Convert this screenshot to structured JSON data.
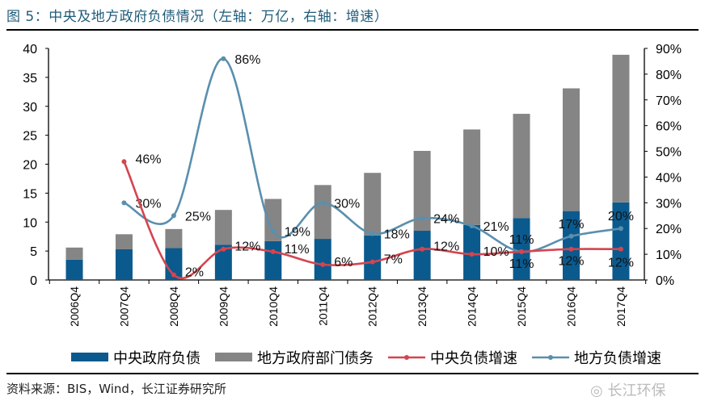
{
  "title": "图 5：中央及地方政府负债情况（左轴：万亿，右轴：增速）",
  "source": "资料来源：BIS，Wind，长江证券研究所",
  "watermark": "长江环保",
  "chart_data": {
    "type": "bar+line",
    "categories": [
      "2006Q4",
      "2007Q4",
      "2008Q4",
      "2009Q4",
      "2010Q4",
      "2011Q4",
      "2012Q4",
      "2013Q4",
      "2014Q4",
      "2015Q4",
      "2016Q4",
      "2017Q4"
    ],
    "left_axis": {
      "range": [
        0,
        40
      ],
      "ticks": [
        "0",
        "5",
        "10",
        "15",
        "20",
        "25",
        "30",
        "35",
        "40"
      ]
    },
    "right_axis": {
      "range": [
        0,
        90
      ],
      "ticks": [
        "0%",
        "10%",
        "20%",
        "30%",
        "40%",
        "50%",
        "60%",
        "70%",
        "80%",
        "90%"
      ]
    },
    "legend_position": "bottom",
    "grid": false,
    "series": [
      {
        "name": "中央政府负债",
        "kind": "stacked-bar",
        "axis": "left",
        "color": "#0b5a8e",
        "values": [
          3.5,
          5.3,
          5.5,
          6.1,
          6.7,
          7.1,
          7.7,
          8.5,
          9.5,
          10.7,
          11.9,
          13.4
        ]
      },
      {
        "name": "地方政府部门债务",
        "kind": "stacked-bar",
        "axis": "left",
        "color": "#858585",
        "values": [
          2.1,
          2.6,
          3.3,
          6.0,
          7.3,
          9.3,
          10.8,
          13.8,
          16.5,
          18.0,
          21.2,
          25.5
        ]
      },
      {
        "name": "中央负债增速",
        "kind": "line",
        "axis": "right",
        "color": "#d4454f",
        "values": [
          null,
          46,
          2,
          12,
          11,
          6,
          7,
          12,
          10,
          11,
          12,
          12
        ],
        "labels": [
          "",
          "46%",
          "2%",
          "12%",
          "11%",
          "6%",
          "7%",
          "12%",
          "10%",
          "11%",
          "12%",
          "12%"
        ]
      },
      {
        "name": "地方负债增速",
        "kind": "line",
        "axis": "right",
        "color": "#5a8fad",
        "values": [
          null,
          30,
          25,
          86,
          19,
          30,
          18,
          24,
          21,
          11,
          17,
          20
        ],
        "labels": [
          "",
          "30%",
          "25%",
          "86%",
          "19%",
          "30%",
          "18%",
          "24%",
          "21%",
          "11%",
          "17%",
          "20%"
        ]
      }
    ]
  }
}
